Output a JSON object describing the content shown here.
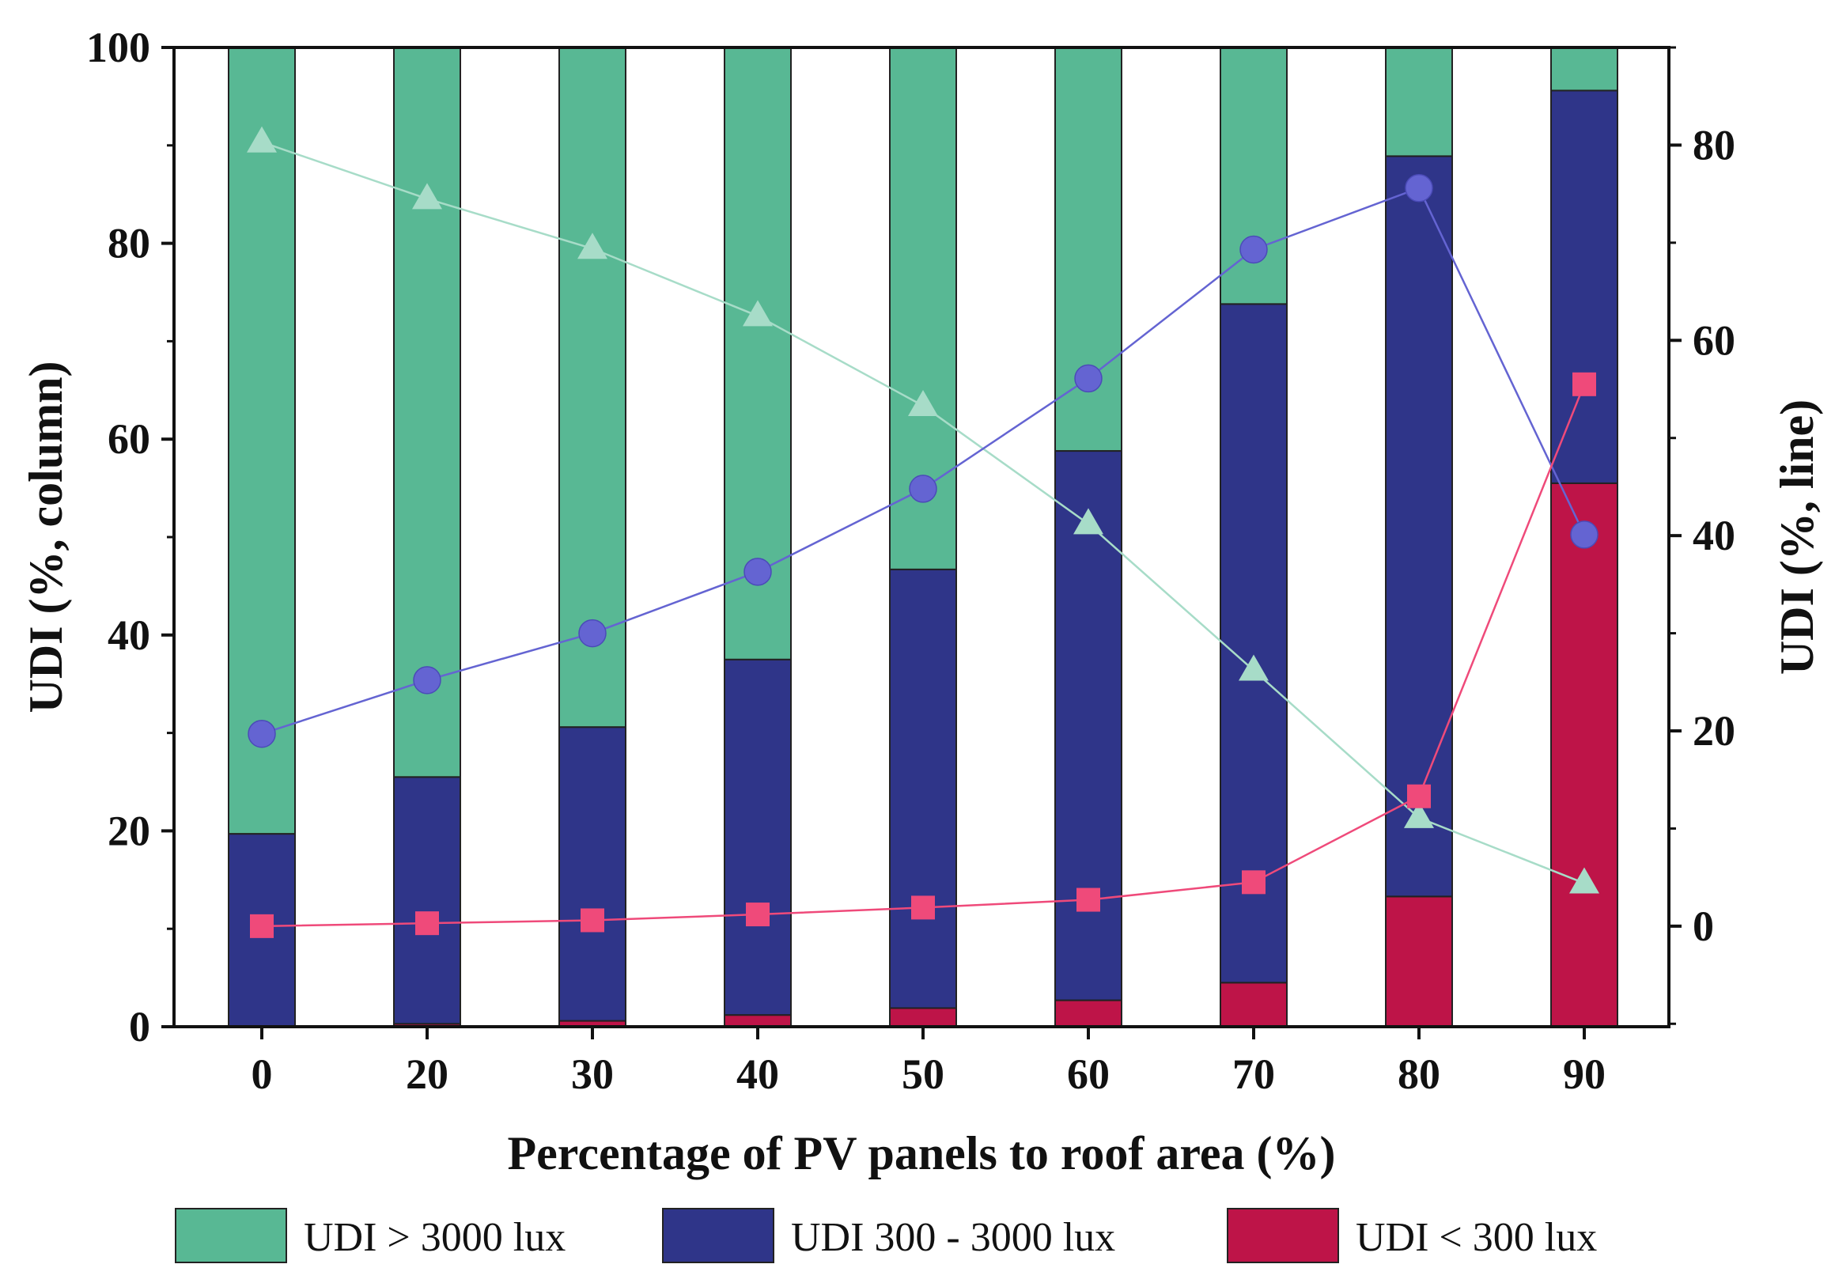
{
  "chart_data": {
    "type": "bar",
    "stacked": true,
    "categories": [
      "0",
      "20",
      "30",
      "40",
      "50",
      "60",
      "70",
      "80",
      "90"
    ],
    "xlabel": "Percentage of PV panels to roof area (%)",
    "ylabel": "UDI (%, column)",
    "y2label": "UDI (%, line)",
    "ylim": [
      0,
      100
    ],
    "yticks": [
      "0",
      "20",
      "40",
      "60",
      "80",
      "100"
    ],
    "y2lim": [
      -10.3,
      90
    ],
    "y2ticks": [
      "0",
      "20",
      "40",
      "60",
      "80"
    ],
    "series": [
      {
        "name": "UDI < 300 lux",
        "color": "#be1448",
        "values": [
          0,
          0.3,
          0.6,
          1.2,
          1.9,
          2.7,
          4.5,
          13.3,
          55.5
        ]
      },
      {
        "name": "UDI 300 - 3000 lux",
        "color": "#2f3589",
        "values": [
          19.7,
          25.2,
          30.0,
          36.3,
          44.8,
          56.1,
          69.3,
          75.6,
          40.1
        ]
      },
      {
        "name": "UDI > 3000 lux",
        "color": "#58b894",
        "values": [
          80.3,
          74.5,
          69.4,
          62.5,
          53.3,
          41.2,
          26.2,
          11.1,
          4.4
        ]
      }
    ],
    "line_series": [
      {
        "name": "UDI > 3000 lux",
        "color": "#a7dcc8",
        "marker": "triangle",
        "values": [
          80.3,
          74.5,
          69.4,
          62.5,
          53.3,
          41.2,
          26.2,
          11.1,
          4.4
        ]
      },
      {
        "name": "UDI 300 - 3000 lux",
        "color": "#6464d2",
        "marker": "circle",
        "values": [
          19.7,
          25.2,
          30.0,
          36.3,
          44.8,
          56.1,
          69.3,
          75.6,
          40.1
        ]
      },
      {
        "name": "UDI < 300 lux",
        "color": "#ef4a7a",
        "marker": "square",
        "values": [
          0,
          0.3,
          0.6,
          1.2,
          1.9,
          2.7,
          4.5,
          13.3,
          55.5
        ]
      }
    ],
    "legend": {
      "position": "bottom",
      "entries": [
        {
          "label": "UDI > 3000 lux",
          "color": "#58b894"
        },
        {
          "label": "UDI 300 - 3000 lux",
          "color": "#2f3589"
        },
        {
          "label": "UDI < 300 lux",
          "color": "#be1448"
        }
      ]
    }
  }
}
